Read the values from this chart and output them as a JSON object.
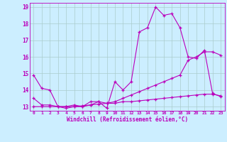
{
  "xlabel": "Windchill (Refroidissement éolien,°C)",
  "xlim": [
    -0.5,
    23.5
  ],
  "ylim": [
    12.75,
    19.25
  ],
  "yticks": [
    13,
    14,
    15,
    16,
    17,
    18,
    19
  ],
  "xticks": [
    0,
    1,
    2,
    3,
    4,
    5,
    6,
    7,
    8,
    9,
    10,
    11,
    12,
    13,
    14,
    15,
    16,
    17,
    18,
    19,
    20,
    21,
    22,
    23
  ],
  "bg_color": "#cceeff",
  "line_color": "#bb00bb",
  "grid_color": "#aacccc",
  "line1": [
    14.9,
    14.1,
    14.0,
    13.0,
    13.0,
    13.1,
    13.0,
    13.3,
    13.3,
    12.9,
    14.5,
    14.0,
    14.5,
    17.5,
    17.75,
    19.0,
    18.5,
    18.6,
    17.75,
    16.0,
    15.9,
    16.4,
    13.8,
    13.6
  ],
  "line2": [
    13.5,
    13.1,
    13.1,
    13.0,
    12.9,
    13.0,
    13.0,
    13.1,
    13.3,
    13.2,
    13.2,
    13.3,
    13.3,
    13.35,
    13.4,
    13.45,
    13.5,
    13.55,
    13.6,
    13.65,
    13.7,
    13.75,
    13.75,
    13.65
  ],
  "line3": [
    13.0,
    13.0,
    13.0,
    13.0,
    13.0,
    13.0,
    13.05,
    13.1,
    13.15,
    13.2,
    13.3,
    13.5,
    13.7,
    13.9,
    14.1,
    14.3,
    14.5,
    14.7,
    14.9,
    15.8,
    16.0,
    16.3,
    16.3,
    16.1
  ]
}
